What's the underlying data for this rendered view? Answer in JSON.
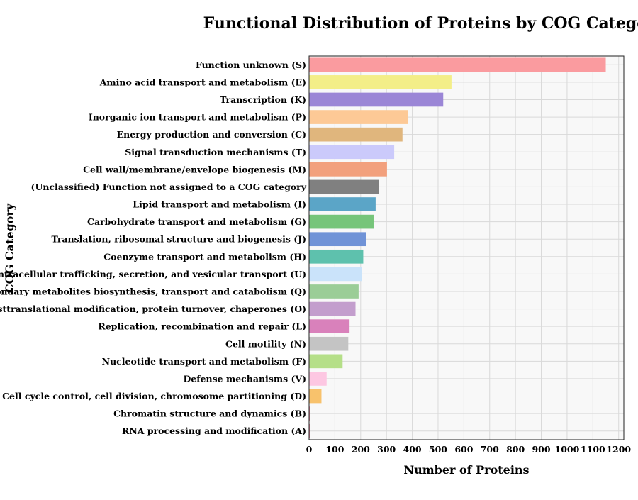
{
  "chart_data": {
    "type": "bar",
    "orientation": "horizontal",
    "title": "Functional Distribution of Proteins by COG Category",
    "xlabel": "Number of Proteins",
    "ylabel": "COG Category",
    "xlim": [
      0,
      1220
    ],
    "xticks": [
      0,
      100,
      200,
      300,
      400,
      500,
      600,
      700,
      800,
      900,
      1000,
      1100,
      1200
    ],
    "grid": true,
    "plot_background": "#f8f8f8",
    "grid_color": "#d9d9d9",
    "categories": [
      "Function unknown (S)",
      "Amino acid transport and metabolism (E)",
      "Transcription (K)",
      "Inorganic ion transport and metabolism (P)",
      "Energy production and conversion (C)",
      "Signal transduction mechanisms (T)",
      "Cell wall/membrane/envelope biogenesis (M)",
      "(Unclassified) Function not assigned to a COG category",
      "Lipid transport and metabolism (I)",
      "Carbohydrate transport and metabolism (G)",
      "Translation, ribosomal structure and biogenesis (J)",
      "Coenzyme transport and metabolism (H)",
      "Intracellular trafficking, secretion, and vesicular transport (U)",
      "Secondary metabolites biosynthesis, transport and catabolism (Q)",
      "Posttranslational modification, protein turnover, chaperones (O)",
      "Replication, recombination and repair (L)",
      "Cell motility (N)",
      "Nucleotide transport and metabolism (F)",
      "Defense mechanisms (V)",
      "Cell cycle control, cell division, chromosome partitioning (D)",
      "Chromatin structure and dynamics (B)",
      "RNA processing and modification (A)"
    ],
    "values": [
      1150,
      552,
      520,
      382,
      362,
      330,
      302,
      270,
      258,
      250,
      222,
      210,
      204,
      192,
      180,
      157,
      152,
      130,
      68,
      48,
      2,
      1
    ],
    "colors": [
      "#fa9b9f",
      "#f3ee88",
      "#9b86d6",
      "#fdc996",
      "#e0b67d",
      "#cbcafb",
      "#f2a07d",
      "#808080",
      "#5ba5c7",
      "#76c57a",
      "#7093d7",
      "#5ec1ad",
      "#cae3fa",
      "#9bcd97",
      "#c39ecd",
      "#d981bb",
      "#c4c4c4",
      "#b5df88",
      "#fdc7e2",
      "#f8c26c",
      "#c5395b",
      "#c5395b"
    ]
  }
}
